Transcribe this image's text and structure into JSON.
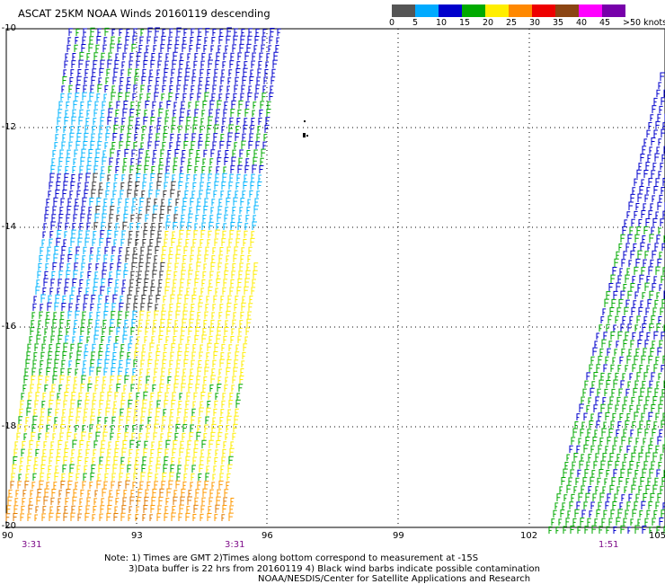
{
  "title": "ASCAT 25KM NOAA Winds 20160119 descending",
  "colorbar": {
    "labels": [
      "0",
      "5",
      "10",
      "15",
      "20",
      "25",
      "30",
      "35",
      "40",
      "45",
      ">50 knots"
    ],
    "colors": [
      "#555555",
      "#00aaff",
      "#0000cc",
      "#00aa00",
      "#ffee00",
      "#ff8800",
      "#ee0000",
      "#8b4513",
      "#ff00ff",
      "#7700aa"
    ]
  },
  "axes": {
    "lat_labels": [
      "-10",
      "-12",
      "-14",
      "-16",
      "-18",
      "-20"
    ],
    "lon_labels": [
      "90",
      "93",
      "96",
      "99",
      "102",
      "105"
    ]
  },
  "pass_times": [
    "3:31",
    "3:31",
    "1:51"
  ],
  "notes": [
    "Note: 1) Times are GMT 2)Times along bottom correspond to measurement at -15S",
    "3)Data buffer is 22 hrs from 20160119 4) Black wind barbs indicate possible contamination",
    "NOAA/NESDIS/Center for Satellite Applications and Research"
  ]
}
